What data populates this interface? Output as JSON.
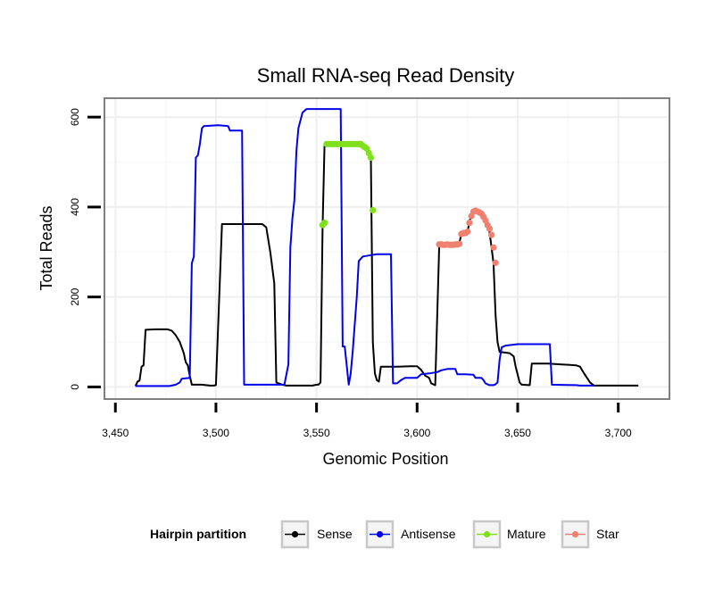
{
  "chart_data": {
    "type": "line",
    "title": "Small RNA-seq Read Density",
    "xlabel": "Genomic Position",
    "ylabel": "Total Reads",
    "xlim": [
      3445,
      3725
    ],
    "ylim": [
      -25,
      640
    ],
    "x_ticks": [
      3450,
      3500,
      3550,
      3600,
      3650,
      3700
    ],
    "x_tick_labels": [
      "3,450",
      "3,500",
      "3,550",
      "3,600",
      "3,650",
      "3,700"
    ],
    "y_ticks": [
      0,
      200,
      400,
      600
    ],
    "y_tick_labels": [
      "0",
      "200",
      "400",
      "600"
    ],
    "grid": true,
    "legend": {
      "title": "Hairpin partition",
      "position": "bottom",
      "entries": [
        "Sense",
        "Antisense",
        "Mature",
        "Star"
      ]
    },
    "series": [
      {
        "name": "Sense",
        "color": "#000000",
        "style": "line",
        "points": [
          [
            3460,
            2
          ],
          [
            3461,
            12
          ],
          [
            3462,
            14
          ],
          [
            3463,
            45
          ],
          [
            3464,
            48
          ],
          [
            3465,
            127
          ],
          [
            3470,
            128
          ],
          [
            3476,
            128
          ],
          [
            3478,
            125
          ],
          [
            3480,
            115
          ],
          [
            3482,
            100
          ],
          [
            3484,
            75
          ],
          [
            3485,
            55
          ],
          [
            3486,
            48
          ],
          [
            3487,
            25
          ],
          [
            3488,
            5
          ],
          [
            3493,
            5
          ],
          [
            3497,
            3
          ],
          [
            3499,
            3
          ],
          [
            3500,
            4
          ],
          [
            3503,
            362
          ],
          [
            3515,
            362
          ],
          [
            3523,
            362
          ],
          [
            3525,
            355
          ],
          [
            3527,
            300
          ],
          [
            3529,
            230
          ],
          [
            3530,
            10
          ],
          [
            3533,
            5
          ],
          [
            3535,
            3
          ],
          [
            3548,
            3
          ],
          [
            3550,
            5
          ],
          [
            3551,
            5
          ],
          [
            3552,
            10
          ],
          [
            3553,
            355
          ],
          [
            3554,
            540
          ],
          [
            3572,
            540
          ],
          [
            3574,
            535
          ],
          [
            3576,
            520
          ],
          [
            3577,
            510
          ],
          [
            3578,
            100
          ],
          [
            3579,
            30
          ],
          [
            3580,
            15
          ],
          [
            3581,
            12
          ],
          [
            3582,
            45
          ],
          [
            3590,
            45
          ],
          [
            3597,
            46
          ],
          [
            3600,
            46
          ],
          [
            3602,
            38
          ],
          [
            3604,
            25
          ],
          [
            3606,
            20
          ],
          [
            3607,
            8
          ],
          [
            3609,
            4
          ],
          [
            3611,
            315
          ],
          [
            3620,
            315
          ],
          [
            3621,
            320
          ],
          [
            3622,
            340
          ],
          [
            3625,
            340
          ],
          [
            3626,
            370
          ],
          [
            3629,
            392
          ],
          [
            3631,
            388
          ],
          [
            3633,
            375
          ],
          [
            3635,
            360
          ],
          [
            3636,
            345
          ],
          [
            3637,
            310
          ],
          [
            3638,
            275
          ],
          [
            3639,
            160
          ],
          [
            3640,
            100
          ],
          [
            3641,
            78
          ],
          [
            3646,
            75
          ],
          [
            3648,
            68
          ],
          [
            3649,
            45
          ],
          [
            3651,
            10
          ],
          [
            3652,
            5
          ],
          [
            3656,
            4
          ],
          [
            3657,
            52
          ],
          [
            3665,
            52
          ],
          [
            3672,
            50
          ],
          [
            3679,
            48
          ],
          [
            3681,
            45
          ],
          [
            3683,
            30
          ],
          [
            3686,
            10
          ],
          [
            3688,
            3
          ],
          [
            3710,
            3
          ]
        ]
      },
      {
        "name": "Antisense",
        "color": "#0000ee",
        "style": "line",
        "points": [
          [
            3460,
            2
          ],
          [
            3470,
            2
          ],
          [
            3477,
            2
          ],
          [
            3480,
            5
          ],
          [
            3482,
            10
          ],
          [
            3483,
            18
          ],
          [
            3487,
            20
          ],
          [
            3488,
            275
          ],
          [
            3489,
            290
          ],
          [
            3490,
            510
          ],
          [
            3491,
            515
          ],
          [
            3492,
            540
          ],
          [
            3493,
            575
          ],
          [
            3494,
            580
          ],
          [
            3501,
            582
          ],
          [
            3506,
            580
          ],
          [
            3507,
            570
          ],
          [
            3513,
            570
          ],
          [
            3514,
            5
          ],
          [
            3525,
            5
          ],
          [
            3534,
            5
          ],
          [
            3536,
            50
          ],
          [
            3537,
            310
          ],
          [
            3538,
            375
          ],
          [
            3539,
            415
          ],
          [
            3540,
            525
          ],
          [
            3541,
            575
          ],
          [
            3543,
            610
          ],
          [
            3545,
            618
          ],
          [
            3562,
            618
          ],
          [
            3563,
            90
          ],
          [
            3564,
            90
          ],
          [
            3566,
            5
          ],
          [
            3567,
            30
          ],
          [
            3568,
            80
          ],
          [
            3570,
            200
          ],
          [
            3571,
            280
          ],
          [
            3573,
            290
          ],
          [
            3577,
            293
          ],
          [
            3580,
            295
          ],
          [
            3587,
            295
          ],
          [
            3588,
            8
          ],
          [
            3590,
            8
          ],
          [
            3592,
            15
          ],
          [
            3594,
            20
          ],
          [
            3600,
            20
          ],
          [
            3602,
            28
          ],
          [
            3606,
            30
          ],
          [
            3610,
            33
          ],
          [
            3612,
            37
          ],
          [
            3615,
            40
          ],
          [
            3619,
            40
          ],
          [
            3620,
            28
          ],
          [
            3624,
            28
          ],
          [
            3628,
            27
          ],
          [
            3629,
            20
          ],
          [
            3632,
            20
          ],
          [
            3633,
            15
          ],
          [
            3634,
            8
          ],
          [
            3636,
            4
          ],
          [
            3638,
            4
          ],
          [
            3639,
            6
          ],
          [
            3640,
            10
          ],
          [
            3641,
            60
          ],
          [
            3642,
            88
          ],
          [
            3644,
            92
          ],
          [
            3650,
            95
          ],
          [
            3666,
            95
          ],
          [
            3667,
            5
          ],
          [
            3679,
            4
          ],
          [
            3681,
            3
          ],
          [
            3688,
            3
          ]
        ]
      },
      {
        "name": "Mature",
        "color": "#80e01e",
        "style": "points",
        "points": [
          [
            3553,
            360
          ],
          [
            3554,
            365
          ],
          [
            3555,
            540
          ],
          [
            3556,
            540
          ],
          [
            3557,
            540
          ],
          [
            3558,
            540
          ],
          [
            3559,
            540
          ],
          [
            3560,
            540
          ],
          [
            3561,
            540
          ],
          [
            3562,
            540
          ],
          [
            3563,
            540
          ],
          [
            3564,
            540
          ],
          [
            3565,
            540
          ],
          [
            3566,
            540
          ],
          [
            3567,
            540
          ],
          [
            3568,
            540
          ],
          [
            3569,
            540
          ],
          [
            3570,
            540
          ],
          [
            3571,
            540
          ],
          [
            3572,
            540
          ],
          [
            3573,
            536
          ],
          [
            3574,
            533
          ],
          [
            3575,
            530
          ],
          [
            3576,
            520
          ],
          [
            3577,
            510
          ],
          [
            3578,
            393
          ]
        ]
      },
      {
        "name": "Star",
        "color": "#f08070",
        "style": "points",
        "points": [
          [
            3611,
            317
          ],
          [
            3612,
            317
          ],
          [
            3613,
            316
          ],
          [
            3614,
            316
          ],
          [
            3615,
            317
          ],
          [
            3616,
            316
          ],
          [
            3617,
            316
          ],
          [
            3618,
            316
          ],
          [
            3619,
            317
          ],
          [
            3620,
            317
          ],
          [
            3621,
            318
          ],
          [
            3622,
            340
          ],
          [
            3623,
            342
          ],
          [
            3624,
            342
          ],
          [
            3625,
            345
          ],
          [
            3626,
            365
          ],
          [
            3627,
            380
          ],
          [
            3628,
            390
          ],
          [
            3629,
            392
          ],
          [
            3630,
            390
          ],
          [
            3631,
            388
          ],
          [
            3632,
            385
          ],
          [
            3633,
            378
          ],
          [
            3634,
            370
          ],
          [
            3635,
            360
          ],
          [
            3636,
            352
          ],
          [
            3637,
            338
          ],
          [
            3638,
            310
          ],
          [
            3639,
            276
          ]
        ]
      }
    ]
  }
}
